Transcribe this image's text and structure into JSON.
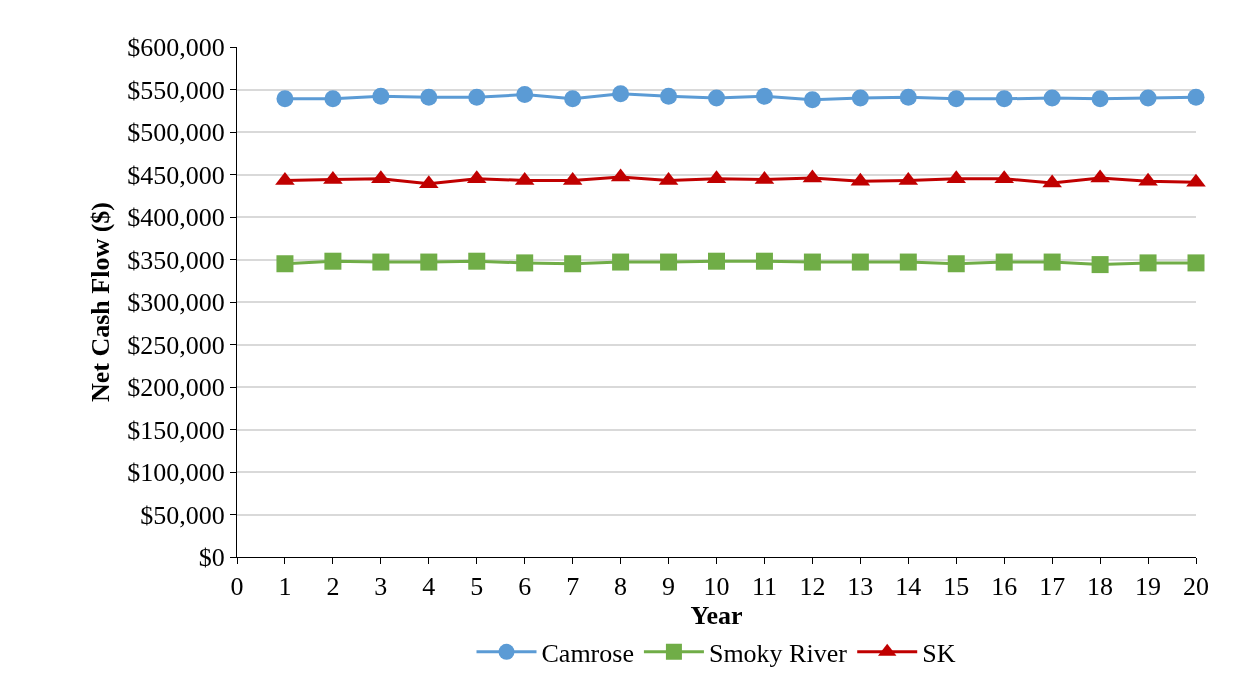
{
  "chart_data": {
    "type": "line",
    "xlabel": "Year",
    "ylabel": "Net Cash Flow ($)",
    "x": [
      1,
      2,
      3,
      4,
      5,
      6,
      7,
      8,
      9,
      10,
      11,
      12,
      13,
      14,
      15,
      16,
      17,
      18,
      19,
      20
    ],
    "series": [
      {
        "name": "Camrose",
        "color": "#5b9bd5",
        "marker": "circle",
        "values": [
          539000,
          539000,
          542000,
          541000,
          541000,
          544000,
          539000,
          545000,
          542000,
          540000,
          542000,
          538000,
          540000,
          541000,
          539000,
          539000,
          540000,
          539000,
          540000,
          541000
        ]
      },
      {
        "name": "Smoky River",
        "color": "#70ad47",
        "marker": "square",
        "values": [
          345000,
          348000,
          347000,
          347000,
          348000,
          346000,
          345000,
          347000,
          347000,
          348000,
          348000,
          347000,
          347000,
          347000,
          345000,
          347000,
          347000,
          344000,
          346000,
          346000
        ]
      },
      {
        "name": "SK",
        "color": "#c00000",
        "marker": "triangle",
        "values": [
          443000,
          444000,
          445000,
          439000,
          445000,
          443000,
          443000,
          447000,
          443000,
          445000,
          444000,
          446000,
          442000,
          443000,
          445000,
          445000,
          440000,
          446000,
          442000,
          441000
        ]
      }
    ],
    "xlim": [
      0,
      20
    ],
    "xticks": [
      0,
      1,
      2,
      3,
      4,
      5,
      6,
      7,
      8,
      9,
      10,
      11,
      12,
      13,
      14,
      15,
      16,
      17,
      18,
      19,
      20
    ],
    "ylim": [
      0,
      600000
    ],
    "yticks": [
      {
        "value": 0,
        "label": "$0"
      },
      {
        "value": 50000,
        "label": "$50,000"
      },
      {
        "value": 100000,
        "label": "$100,000"
      },
      {
        "value": 150000,
        "label": "$150,000"
      },
      {
        "value": 200000,
        "label": "$200,000"
      },
      {
        "value": 250000,
        "label": "$250,000"
      },
      {
        "value": 300000,
        "label": "$300,000"
      },
      {
        "value": 350000,
        "label": "$350,000"
      },
      {
        "value": 400000,
        "label": "$400,000"
      },
      {
        "value": 450000,
        "label": "$450,000"
      },
      {
        "value": 500000,
        "label": "$500,000"
      },
      {
        "value": 550000,
        "label": "$550,000"
      },
      {
        "value": 600000,
        "label": "$600,000"
      }
    ],
    "grid": "y",
    "legend": "bottom"
  }
}
